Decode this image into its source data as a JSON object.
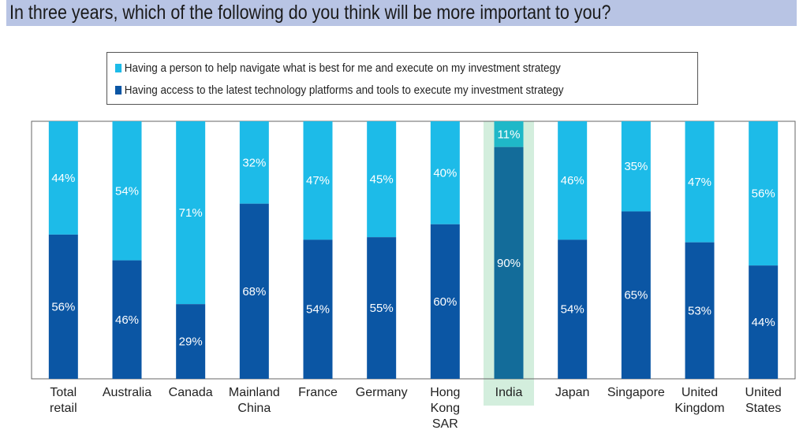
{
  "chart_data": {
    "type": "bar",
    "stacked": true,
    "title": "In three years, which of the following do you think will be more important to you?",
    "categories": [
      [
        "Total",
        "retail"
      ],
      [
        "Australia"
      ],
      [
        "Canada"
      ],
      [
        "Mainland",
        "China"
      ],
      [
        "France"
      ],
      [
        "Germany"
      ],
      [
        "Hong",
        "Kong",
        "SAR"
      ],
      [
        "India"
      ],
      [
        "Japan"
      ],
      [
        "Singapore"
      ],
      [
        "United",
        "Kingdom"
      ],
      [
        "United",
        "States"
      ]
    ],
    "highlight_index": 7,
    "ylim": [
      0,
      100
    ],
    "series": [
      {
        "name": "Having access to the latest technology platforms and tools to execute my investment strategy",
        "color": "#0b56a4",
        "highlight_color": "#136c9a",
        "values": [
          56,
          46,
          29,
          68,
          54,
          55,
          60,
          90,
          54,
          65,
          53,
          44
        ]
      },
      {
        "name": "Having a person to help navigate what is best for me and execute on my investment strategy",
        "color": "#1dbbe8",
        "highlight_color": "#1fb8c8",
        "values": [
          44,
          54,
          71,
          32,
          47,
          45,
          40,
          11,
          46,
          35,
          47,
          56
        ]
      }
    ],
    "legend": "top-center",
    "highlight_bg": "#d3eedd"
  }
}
